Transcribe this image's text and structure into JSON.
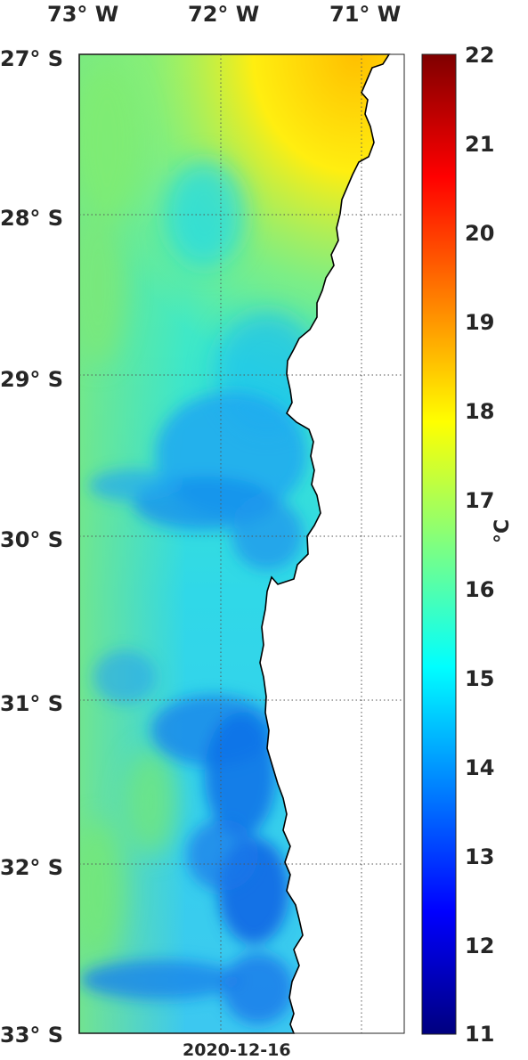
{
  "map": {
    "lon_labels": [
      "73° W",
      "72° W",
      "71° W"
    ],
    "lat_labels": [
      "27° S",
      "28° S",
      "29° S",
      "30° S",
      "31° S",
      "32° S",
      "33° S"
    ],
    "date": "2020-12-16"
  },
  "colorbar": {
    "unit": "°C",
    "ticks": [
      "22",
      "21",
      "20",
      "19",
      "18",
      "17",
      "16",
      "15",
      "14",
      "13",
      "12",
      "11"
    ],
    "min": 11,
    "max": 22,
    "colormap": "jet"
  },
  "colors": {
    "land": "#ffffff",
    "coast": "#000000",
    "grid": "#555555"
  }
}
